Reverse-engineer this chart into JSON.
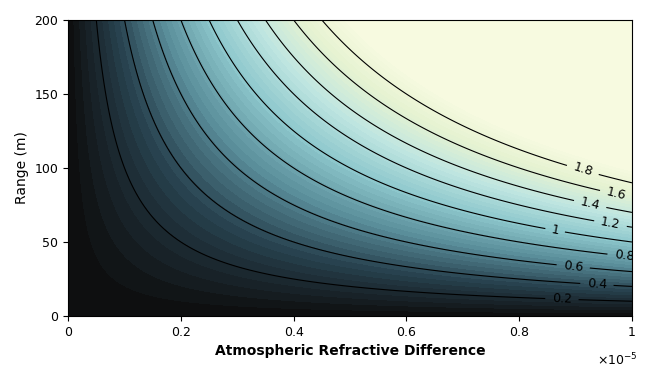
{
  "xlim": [
    0,
    1e-05
  ],
  "ylim": [
    0,
    200
  ],
  "xlabel": "Atmospheric Refractive Difference",
  "ylabel": "Range (m)",
  "xlabel_exp": "x 10$^{-5}$",
  "xtick_labels": [
    "0",
    "0.2",
    "0.4",
    "0.6",
    "0.8",
    "1"
  ],
  "xtick_vals": [
    0,
    2e-06,
    4e-06,
    6e-06,
    8e-06,
    1e-05
  ],
  "ytick_vals": [
    0,
    50,
    100,
    150,
    200
  ],
  "contour_levels": [
    0.2,
    0.4,
    0.6,
    0.8,
    1.0,
    1.2,
    1.4,
    1.6,
    1.8
  ],
  "colormap": "bone_r",
  "scale_factor": 200000.0,
  "background_color": "#ffffff",
  "fig_width": 6.52,
  "fig_height": 3.83,
  "dpi": 100,
  "title": ""
}
